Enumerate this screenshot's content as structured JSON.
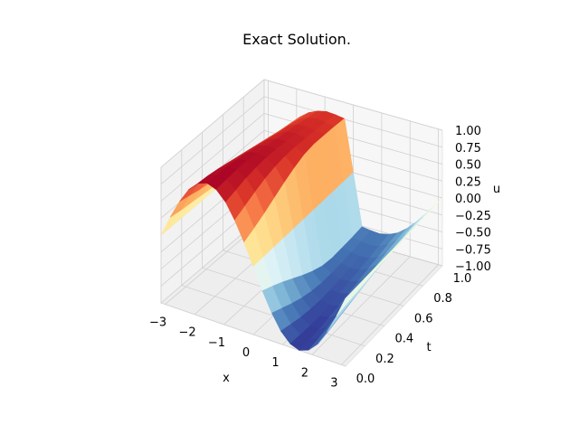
{
  "chart_data": {
    "type": "surface3d",
    "title": "Exact Solution.",
    "xlabel": "x",
    "ylabel": "t",
    "zlabel": "u",
    "xlim": [
      -3.14159,
      3.14159
    ],
    "ylim": [
      0,
      1
    ],
    "zlim": [
      -1,
      1
    ],
    "xticks": [
      "−3",
      "−2",
      "−1",
      "0",
      "1",
      "2",
      "3"
    ],
    "xtick_values": [
      -3,
      -2,
      -1,
      0,
      1,
      2,
      3
    ],
    "yticks": [
      "0.0",
      "0.2",
      "0.4",
      "0.6",
      "0.8",
      "1.0"
    ],
    "ytick_values": [
      0,
      0.2,
      0.4,
      0.6,
      0.8,
      1.0
    ],
    "zticks": [
      "−1.00",
      "−0.75",
      "−0.50",
      "−0.25",
      "0.00",
      "0.25",
      "0.50",
      "0.75",
      "1.00"
    ],
    "ztick_values": [
      -1,
      -0.75,
      -0.5,
      -0.25,
      0,
      0.25,
      0.5,
      0.75,
      1
    ],
    "grid": true,
    "colormap": "RdYlBu_r",
    "surface": {
      "description_of_values": "u(x,t) sampled on a grid; u(x,0) = -sin(x), steepening into a shock at x = 0 as t increases (viscous Burgers)",
      "t": [
        0.0,
        0.1,
        0.2,
        0.3,
        0.4,
        0.5,
        0.6,
        0.7,
        0.8,
        0.9,
        1.0
      ],
      "x": [
        -3.14,
        -2.83,
        -2.51,
        -2.2,
        -1.88,
        -1.57,
        -1.26,
        -0.94,
        -0.63,
        -0.31,
        0.0,
        0.31,
        0.63,
        0.94,
        1.26,
        1.57,
        1.88,
        2.2,
        2.51,
        2.83,
        3.14
      ],
      "u": [
        [
          0.0,
          0.31,
          0.59,
          0.81,
          0.95,
          1.0,
          0.95,
          0.81,
          0.59,
          0.31,
          0.0,
          -0.31,
          -0.59,
          -0.81,
          -0.95,
          -1.0,
          -0.95,
          -0.81,
          -0.59,
          -0.31,
          0.0
        ],
        [
          0.0,
          0.28,
          0.55,
          0.78,
          0.93,
          0.99,
          0.96,
          0.85,
          0.66,
          0.38,
          0.0,
          -0.38,
          -0.66,
          -0.85,
          -0.96,
          -0.99,
          -0.93,
          -0.78,
          -0.55,
          -0.28,
          0.0
        ],
        [
          0.0,
          0.26,
          0.51,
          0.74,
          0.9,
          0.98,
          0.97,
          0.89,
          0.73,
          0.46,
          0.0,
          -0.46,
          -0.73,
          -0.89,
          -0.97,
          -0.98,
          -0.9,
          -0.74,
          -0.51,
          -0.26,
          0.0
        ],
        [
          0.0,
          0.24,
          0.48,
          0.7,
          0.86,
          0.95,
          0.97,
          0.91,
          0.79,
          0.55,
          0.0,
          -0.55,
          -0.79,
          -0.91,
          -0.97,
          -0.95,
          -0.86,
          -0.7,
          -0.48,
          -0.24,
          0.0
        ],
        [
          0.0,
          0.22,
          0.45,
          0.66,
          0.82,
          0.92,
          0.95,
          0.92,
          0.83,
          0.64,
          0.0,
          -0.64,
          -0.83,
          -0.92,
          -0.95,
          -0.92,
          -0.82,
          -0.66,
          -0.45,
          -0.22,
          0.0
        ],
        [
          0.0,
          0.21,
          0.42,
          0.62,
          0.78,
          0.88,
          0.92,
          0.91,
          0.85,
          0.72,
          0.0,
          -0.72,
          -0.85,
          -0.91,
          -0.92,
          -0.88,
          -0.78,
          -0.62,
          -0.42,
          -0.21,
          0.0
        ],
        [
          0.0,
          0.2,
          0.39,
          0.58,
          0.74,
          0.84,
          0.89,
          0.89,
          0.85,
          0.78,
          0.0,
          -0.78,
          -0.85,
          -0.89,
          -0.89,
          -0.84,
          -0.74,
          -0.58,
          -0.39,
          -0.2,
          0.0
        ],
        [
          0.0,
          0.19,
          0.37,
          0.55,
          0.7,
          0.8,
          0.86,
          0.87,
          0.84,
          0.8,
          0.0,
          -0.8,
          -0.84,
          -0.87,
          -0.86,
          -0.8,
          -0.7,
          -0.55,
          -0.37,
          -0.19,
          0.0
        ],
        [
          0.0,
          0.18,
          0.35,
          0.52,
          0.66,
          0.77,
          0.83,
          0.84,
          0.82,
          0.79,
          0.0,
          -0.79,
          -0.82,
          -0.84,
          -0.83,
          -0.77,
          -0.66,
          -0.52,
          -0.35,
          -0.18,
          0.0
        ],
        [
          0.0,
          0.17,
          0.33,
          0.49,
          0.63,
          0.73,
          0.79,
          0.82,
          0.8,
          0.78,
          0.0,
          -0.78,
          -0.8,
          -0.82,
          -0.79,
          -0.73,
          -0.63,
          -0.49,
          -0.33,
          -0.17,
          0.0
        ],
        [
          0.0,
          0.16,
          0.32,
          0.47,
          0.6,
          0.7,
          0.76,
          0.79,
          0.78,
          0.76,
          0.0,
          -0.76,
          -0.78,
          -0.79,
          -0.76,
          -0.7,
          -0.6,
          -0.47,
          -0.32,
          -0.16,
          0.0
        ]
      ]
    }
  }
}
